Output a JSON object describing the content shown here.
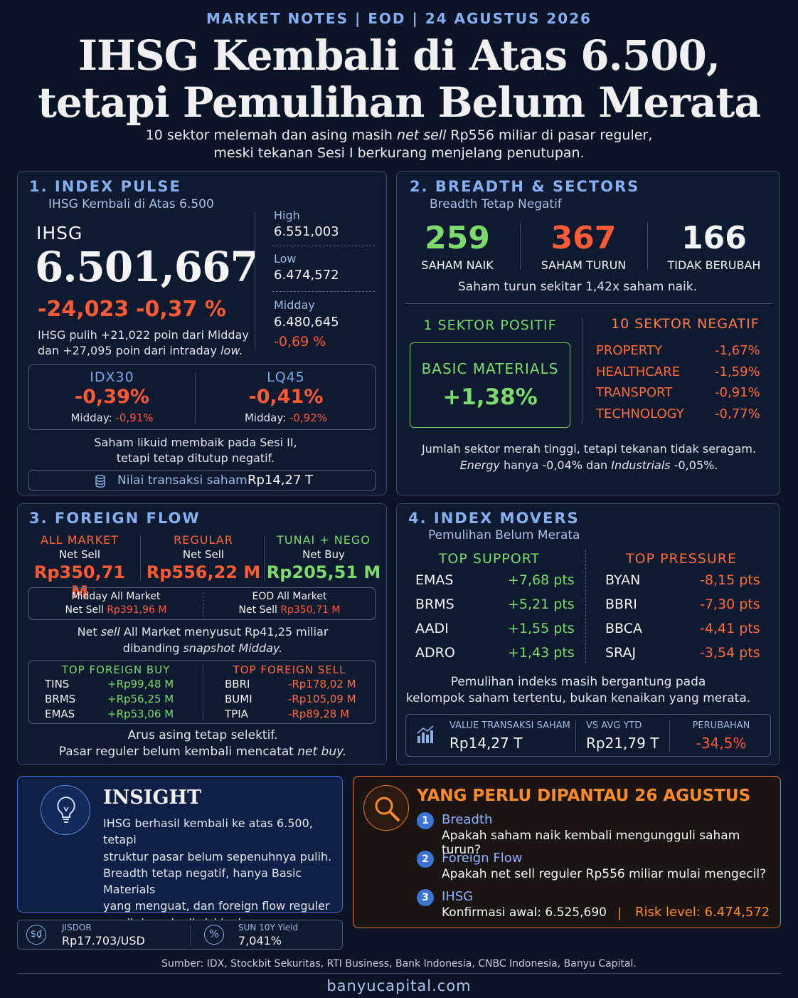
{
  "header": {
    "kicker": "MARKET NOTES | EOD | 24 AGUSTUS 2026",
    "title_line1": "IHSG Kembali di Atas 6.500,",
    "title_line2": "tetapi Pemulihan Belum Merata",
    "sub_line1_a": "10 sektor melemah dan asing masih ",
    "sub_line1_b": "net sell",
    "sub_line1_c": " Rp556 miliar di pasar reguler,",
    "sub_line2": "meski tekanan Sesi I berkurang menjelang penutupan."
  },
  "pulse": {
    "title": "1. INDEX PULSE",
    "subtitle": "IHSG Kembali di Atas 6.500",
    "name": "IHSG",
    "value": "6.501,667",
    "chg_pts": "-24,023",
    "chg_pct": "-0,37 %",
    "note1": "IHSG pulih +21,022 poin dari Midday",
    "note2_a": "dan +27,095 poin dari intraday ",
    "note2_b": "low.",
    "high_label": "High",
    "high": "6.551,003",
    "low_label": "Low",
    "low": "6.474,572",
    "mid_label": "Midday",
    "mid": "6.480,645",
    "mid_pct": "-0,69 %",
    "idx30_label": "IDX30",
    "idx30": "-0,39%",
    "idx30_mid_label": "Midday: ",
    "idx30_mid": "-0,91%",
    "lq45_label": "LQ45",
    "lq45": "-0,41%",
    "lq45_mid_label": "Midday: ",
    "lq45_mid": "-0,92%",
    "liq1": "Saham likuid membaik pada Sesi II,",
    "liq2": "tetapi tetap ditutup negatif.",
    "val_label": "Nilai transaksi saham",
    "val": "Rp14,27 T"
  },
  "breadth": {
    "title": "2. BREADTH & SECTORS",
    "subtitle": "Breadth Tetap Negatif",
    "up": "259",
    "up_label": "SAHAM NAIK",
    "down": "367",
    "down_label": "SAHAM TURUN",
    "flat": "166",
    "flat_label": "TIDAK BERUBAH",
    "ratio": "Saham turun sekitar 1,42x saham naik.",
    "pos_title": "1  SEKTOR POSITIF",
    "pos_name": "BASIC MATERIALS",
    "pos_val": "+1,38%",
    "neg_title": "10 SEKTOR NEGATIF",
    "neg": [
      {
        "n": "PROPERTY",
        "v": "-1,67%"
      },
      {
        "n": "HEALTHCARE",
        "v": "-1,59%"
      },
      {
        "n": "TRANSPORT",
        "v": "-0,91%"
      },
      {
        "n": "TECHNOLOGY",
        "v": "-0,77%"
      }
    ],
    "note1": "Jumlah sektor merah tinggi, tetapi tekanan tidak seragam.",
    "note2_a": "Energy",
    "note2_b": " hanya -0,04% dan ",
    "note2_c": "Industrials",
    "note2_d": " -0,05%."
  },
  "foreign": {
    "title": "3. FOREIGN FLOW",
    "all_label": "ALL MARKET",
    "all_type": "Net Sell",
    "all_val": "Rp350,71 M",
    "reg_label": "REGULAR",
    "reg_type": "Net Sell",
    "reg_val": "Rp556,22 M",
    "tn_label": "TUNAI + NEGO",
    "tn_type": "Net Buy",
    "tn_val": "Rp205,51 M",
    "mid_a": "Midday All Market",
    "mid_b": "Net Sell ",
    "mid_v": "Rp391,96 M",
    "eod_a": "EOD All Market",
    "eod_b": "Net Sell ",
    "eod_v": "Rp350,71 M",
    "n1_a": "Net ",
    "n1_b": "sell",
    "n1_c": " All Market menyusut Rp41,25 miliar",
    "n2_a": "dibanding ",
    "n2_b": "snapshot Midday.",
    "buy_title": "TOP FOREIGN BUY",
    "buy": [
      {
        "n": "TINS",
        "v": "+Rp99,48 M"
      },
      {
        "n": "BRMS",
        "v": "+Rp56,25 M"
      },
      {
        "n": "EMAS",
        "v": "+Rp53,06 M"
      }
    ],
    "sell_title": "TOP FOREIGN SELL",
    "sell": [
      {
        "n": "BBRI",
        "v": "-Rp178,02 M"
      },
      {
        "n": "BUMI",
        "v": "-Rp105,09 M"
      },
      {
        "n": "TPIA",
        "v": "-Rp89,28 M"
      }
    ],
    "f1": "Arus asing tetap selektif.",
    "f2_a": "Pasar reguler belum kembali mencatat ",
    "f2_b": "net buy."
  },
  "movers": {
    "title": "4. INDEX MOVERS",
    "subtitle": "Pemulihan Belum Merata",
    "sup_title": "TOP SUPPORT",
    "sup": [
      {
        "n": "EMAS",
        "v": "+7,68 pts"
      },
      {
        "n": "BRMS",
        "v": "+5,21 pts"
      },
      {
        "n": "AADI",
        "v": "+1,55 pts"
      },
      {
        "n": "ADRO",
        "v": "+1,43 pts"
      }
    ],
    "pr_title": "TOP PRESSURE",
    "pr": [
      {
        "n": "BYAN",
        "v": "-8,15 pts"
      },
      {
        "n": "BBRI",
        "v": "-7,30 pts"
      },
      {
        "n": "BBCA",
        "v": "-4,41 pts"
      },
      {
        "n": "SRAJ",
        "v": "-3,54 pts"
      }
    ],
    "n1": "Pemulihan indeks masih bergantung pada",
    "n2": "kelompok saham tertentu, bukan kenaikan yang merata.",
    "v_label": "VALUE TRANSAKSI SAHAM",
    "v": "Rp14,27 T",
    "avg_label": "VS AVG YTD",
    "avg": "Rp21,79 T",
    "chg_label": "PERUBAHAN",
    "chg": "-34,5%"
  },
  "insight": {
    "title": "INSIGHT",
    "lines": [
      "IHSG berhasil kembali ke atas 6.500, tetapi",
      "struktur pasar belum sepenuhnya pulih.",
      "Breadth tetap negatif, hanya Basic Materials",
      "yang menguat, dan foreign flow reguler",
      "masih berada di sisi jual."
    ]
  },
  "macro": {
    "jisdor_label": "JISDOR",
    "jisdor": "Rp17.703/USD",
    "sun_label": "SUN 10Y Yield",
    "sun": "7,041%"
  },
  "watch": {
    "title": "YANG PERLU DIPANTAU 26 AGUSTUS",
    "items": [
      {
        "num": "1",
        "h": "Breadth",
        "t": "Apakah saham naik kembali mengungguli saham turun?"
      },
      {
        "num": "2",
        "h": "Foreign Flow",
        "t": "Apakah net sell reguler Rp556 miliar mulai mengecil?"
      },
      {
        "num": "3",
        "h": "IHSG",
        "t": "Konfirmasi awal: 6.525,690"
      }
    ],
    "sep": "|",
    "risk": "Risk level: 6.474,572"
  },
  "footer": {
    "source": "Sumber: IDX, Stockbit Sekuritas, RTI Business, Bank Indonesia, CNBC Indonesia, Banyu Capital.",
    "site": "banyucapital.com"
  }
}
